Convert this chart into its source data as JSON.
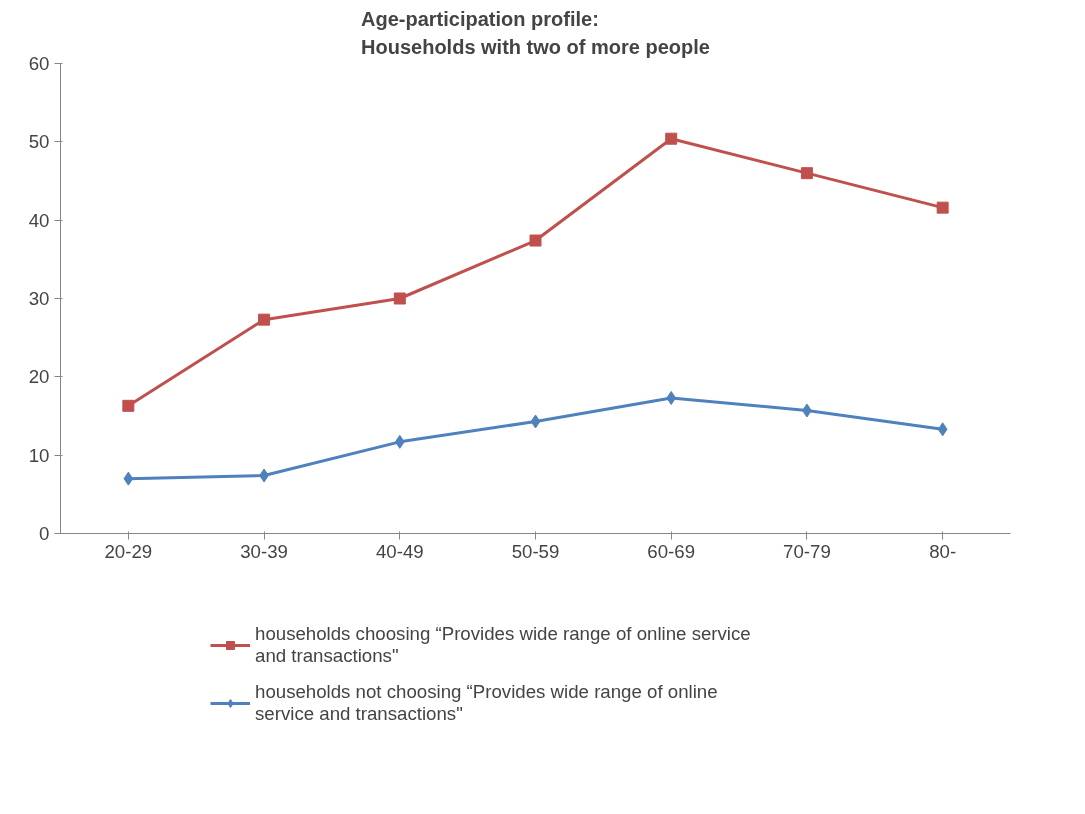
{
  "chart_data": {
    "type": "line",
    "title": "Age-participation profile:\nHouseholds with two of more people",
    "categories": [
      "20-29",
      "30-39",
      "40-49",
      "50-59",
      "60-69",
      "70-79",
      "80-"
    ],
    "series": [
      {
        "name": "households choosing “Provides wide range of online service and transactions\"",
        "color": "#c0504d",
        "marker": "square",
        "values": [
          16.3,
          27.3,
          30.0,
          37.4,
          50.4,
          46.0,
          41.6
        ]
      },
      {
        "name": "households not choosing “Provides wide range of online service and transactions\"",
        "color": "#4f81bd",
        "marker": "diamond",
        "values": [
          7.0,
          7.4,
          11.7,
          14.3,
          17.3,
          15.7,
          13.3
        ]
      }
    ],
    "ylim": [
      0,
      60
    ],
    "yticks": [
      0,
      10,
      20,
      30,
      40,
      50,
      60
    ],
    "grid": false,
    "legend": "bottom",
    "line_style": "solid"
  }
}
